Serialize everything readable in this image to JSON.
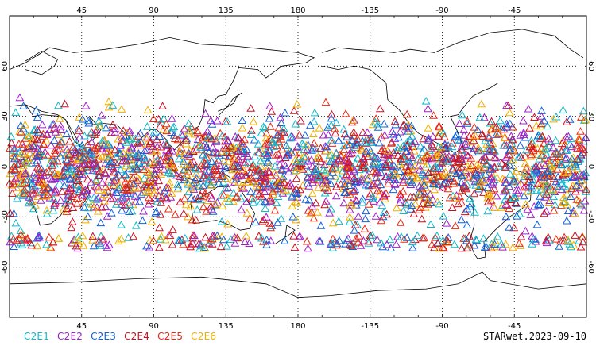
{
  "map": {
    "projection": "equirectangular",
    "center_longitude": 180,
    "lon_ticks": [
      45,
      90,
      135,
      180,
      -135,
      -90,
      -45
    ],
    "lat_ticks": [
      60,
      30,
      0,
      -30,
      -60
    ],
    "grid": "dotted",
    "marker_shape": "triangle-outline",
    "lat_coverage_degrees": [
      -45,
      45
    ]
  },
  "legend": {
    "items": [
      {
        "label": "C2E1",
        "color": "#10b8c8"
      },
      {
        "label": "C2E2",
        "color": "#a020c8"
      },
      {
        "label": "C2E3",
        "color": "#1060d8"
      },
      {
        "label": "C2E4",
        "color": "#c81020"
      },
      {
        "label": "C2E5",
        "color": "#e82810"
      },
      {
        "label": "C2E6",
        "color": "#f0b000"
      }
    ]
  },
  "footer": {
    "label": "STARwet.2023-09-10"
  },
  "colors": {
    "coast": "#000000",
    "frame": "#000000",
    "background": "#ffffff"
  }
}
